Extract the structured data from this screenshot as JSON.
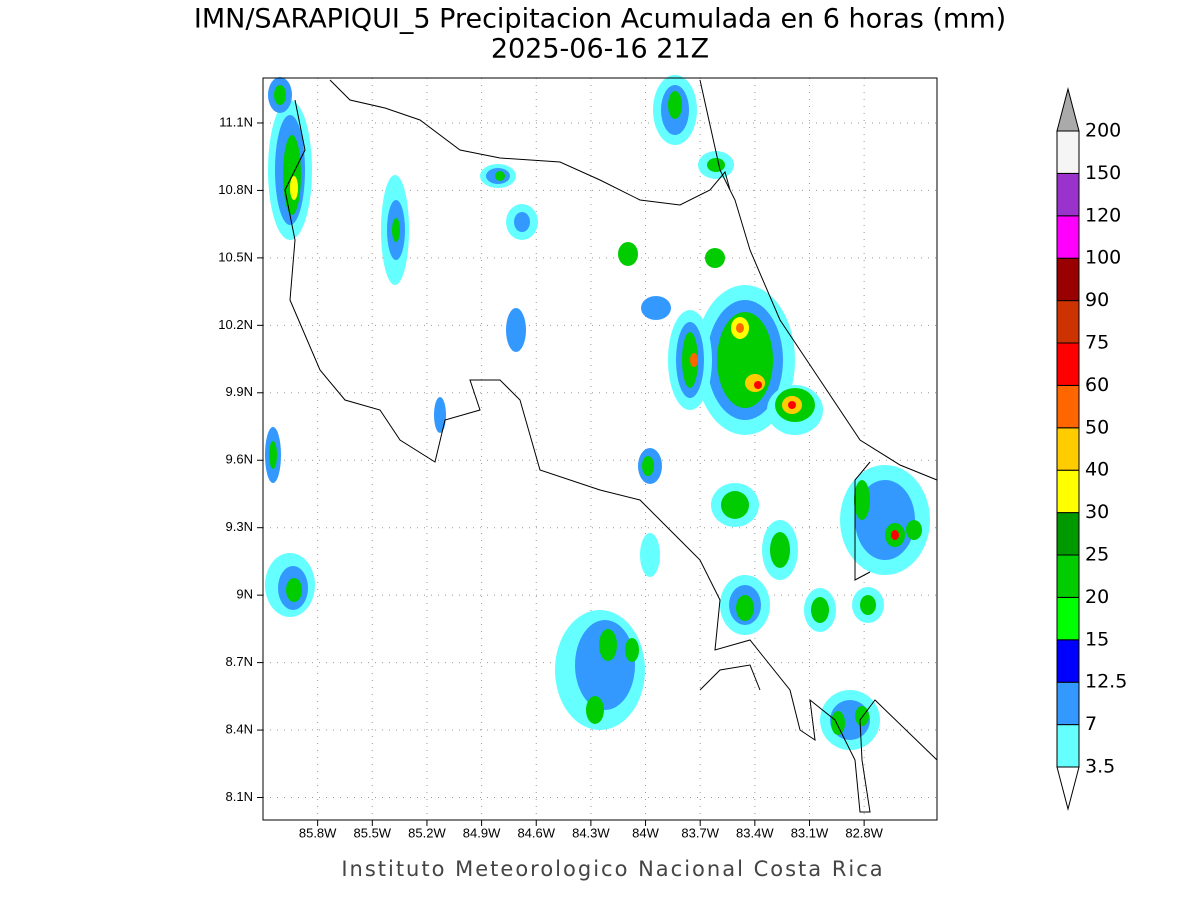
{
  "header": {
    "title": "IMN/SARAPIQUI_5 Precipitacion Acumulada en 6 horas (mm)",
    "subtitle": "2025-06-16 21Z"
  },
  "map": {
    "lon_range": [
      -86.1,
      -82.4
    ],
    "lat_range": [
      8.0,
      11.3
    ],
    "grid": true,
    "lon_ticks": [
      {
        "value": -85.8,
        "label": "85.8W"
      },
      {
        "value": -85.5,
        "label": "85.5W"
      },
      {
        "value": -85.2,
        "label": "85.2W"
      },
      {
        "value": -84.9,
        "label": "84.9W"
      },
      {
        "value": -84.6,
        "label": "84.6W"
      },
      {
        "value": -84.3,
        "label": "84.3W"
      },
      {
        "value": -84.0,
        "label": "84W"
      },
      {
        "value": -83.7,
        "label": "83.7W"
      },
      {
        "value": -83.4,
        "label": "83.4W"
      },
      {
        "value": -83.1,
        "label": "83.1W"
      },
      {
        "value": -82.8,
        "label": "82.8W"
      }
    ],
    "lat_ticks": [
      {
        "value": 8.1,
        "label": "8.1N"
      },
      {
        "value": 8.4,
        "label": "8.4N"
      },
      {
        "value": 8.7,
        "label": "8.7N"
      },
      {
        "value": 9.0,
        "label": "9N"
      },
      {
        "value": 9.3,
        "label": "9.3N"
      },
      {
        "value": 9.6,
        "label": "9.6N"
      },
      {
        "value": 9.9,
        "label": "9.9N"
      },
      {
        "value": 10.2,
        "label": "10.2N"
      },
      {
        "value": 10.5,
        "label": "10.5N"
      },
      {
        "value": 10.8,
        "label": "10.8N"
      },
      {
        "value": 11.1,
        "label": "11.1N"
      }
    ]
  },
  "colorbar": {
    "levels": [
      3.5,
      7,
      12.5,
      15,
      20,
      25,
      30,
      40,
      50,
      60,
      75,
      90,
      100,
      120,
      150,
      200
    ],
    "colors": [
      "#66ffff",
      "#3399ff",
      "#0000ff",
      "#00ff00",
      "#00cc00",
      "#009900",
      "#ffff00",
      "#ffcc00",
      "#ff6600",
      "#ff0000",
      "#cc3300",
      "#990000",
      "#ff00ff",
      "#9933cc",
      "#f5f5f5"
    ],
    "under_color": "#ffffff",
    "over_color": "#aaaaaa"
  },
  "footer": "Instituto Meteorologico Nacional Costa Rica"
}
